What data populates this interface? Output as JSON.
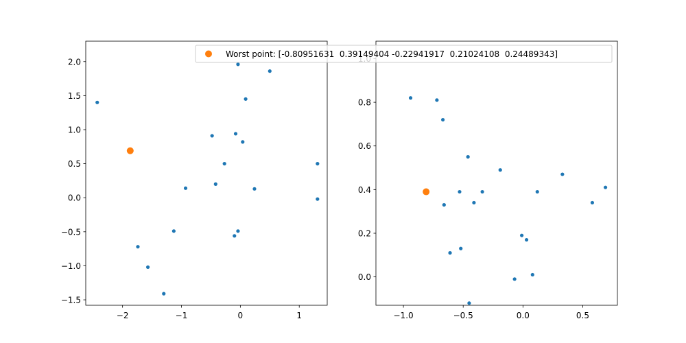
{
  "chart_data": [
    {
      "type": "scatter",
      "title": "",
      "xlabel": "",
      "ylabel": "",
      "xlim": [
        -2.625,
        1.475
      ],
      "ylim": [
        -1.58,
        2.3
      ],
      "xticks": [
        {
          "value": -2,
          "label": "−2"
        },
        {
          "value": -1,
          "label": "−1"
        },
        {
          "value": 0,
          "label": "0"
        },
        {
          "value": 1,
          "label": "1"
        }
      ],
      "yticks": [
        {
          "value": -1.5,
          "label": "−1.5"
        },
        {
          "value": -1.0,
          "label": "−1.0"
        },
        {
          "value": -0.5,
          "label": "−0.5"
        },
        {
          "value": 0.0,
          "label": "0.0"
        },
        {
          "value": 0.5,
          "label": "0.5"
        },
        {
          "value": 1.0,
          "label": "1.0"
        },
        {
          "value": 1.5,
          "label": "1.5"
        },
        {
          "value": 2.0,
          "label": "2.0"
        }
      ],
      "grid": false,
      "series": [
        {
          "color": "#1f77b4",
          "marker": "small",
          "points": [
            [
              -2.43,
              1.4
            ],
            [
              -0.04,
              1.96
            ],
            [
              0.5,
              1.86
            ],
            [
              0.09,
              1.45
            ],
            [
              -0.48,
              0.91
            ],
            [
              -0.08,
              0.94
            ],
            [
              0.04,
              0.82
            ],
            [
              -0.27,
              0.5
            ],
            [
              -0.42,
              0.2
            ],
            [
              -0.93,
              0.14
            ],
            [
              0.24,
              0.13
            ],
            [
              1.31,
              0.5
            ],
            [
              1.31,
              -0.02
            ],
            [
              -1.13,
              -0.49
            ],
            [
              -0.04,
              -0.49
            ],
            [
              -0.1,
              -0.56
            ],
            [
              -1.74,
              -0.72
            ],
            [
              -1.57,
              -1.02
            ],
            [
              -1.3,
              -1.41
            ]
          ]
        },
        {
          "name": "Worst point: [-0.80951631  0.39149404 -0.22941917  0.21024108  0.24489343]",
          "color": "#ff7f0e",
          "marker": "large",
          "points": [
            [
              -1.87,
              0.69
            ]
          ]
        }
      ]
    },
    {
      "type": "scatter",
      "title": "",
      "xlabel": "",
      "ylabel": "",
      "xlim": [
        -1.23,
        0.79
      ],
      "ylim": [
        -0.13,
        1.08
      ],
      "xticks": [
        {
          "value": -1.0,
          "label": "−1.0"
        },
        {
          "value": -0.5,
          "label": "−0.5"
        },
        {
          "value": 0.0,
          "label": "0.0"
        },
        {
          "value": 0.5,
          "label": "0.5"
        }
      ],
      "yticks": [
        {
          "value": 0.0,
          "label": "0.0"
        },
        {
          "value": 0.2,
          "label": "0.2"
        },
        {
          "value": 0.4,
          "label": "0.4"
        },
        {
          "value": 0.6,
          "label": "0.6"
        },
        {
          "value": 0.8,
          "label": "0.8"
        },
        {
          "value": 1.0,
          "label": "1.0"
        }
      ],
      "grid": false,
      "series": [
        {
          "color": "#1f77b4",
          "marker": "small",
          "points": [
            [
              -0.94,
              0.82
            ],
            [
              -0.72,
              0.81
            ],
            [
              -0.67,
              0.72
            ],
            [
              -0.46,
              0.55
            ],
            [
              -0.19,
              0.49
            ],
            [
              0.33,
              0.47
            ],
            [
              0.69,
              0.41
            ],
            [
              -0.53,
              0.39
            ],
            [
              -0.34,
              0.39
            ],
            [
              0.12,
              0.39
            ],
            [
              0.58,
              0.34
            ],
            [
              -0.41,
              0.34
            ],
            [
              -0.66,
              0.33
            ],
            [
              -0.01,
              0.19
            ],
            [
              0.03,
              0.17
            ],
            [
              -0.52,
              0.13
            ],
            [
              -0.61,
              0.11
            ],
            [
              0.08,
              0.01
            ],
            [
              -0.07,
              -0.01
            ],
            [
              -0.45,
              -0.12
            ]
          ]
        },
        {
          "name": "Worst point: [-0.80951631  0.39149404 -0.22941917  0.21024108  0.24489343]",
          "color": "#ff7f0e",
          "marker": "large",
          "points": [
            [
              -0.81,
              0.39
            ]
          ]
        }
      ]
    }
  ],
  "legend": {
    "placement": "top-center",
    "entries": [
      {
        "label": "Worst point: [-0.80951631  0.39149404 -0.22941917  0.21024108  0.24489343]",
        "color": "#ff7f0e"
      }
    ]
  }
}
